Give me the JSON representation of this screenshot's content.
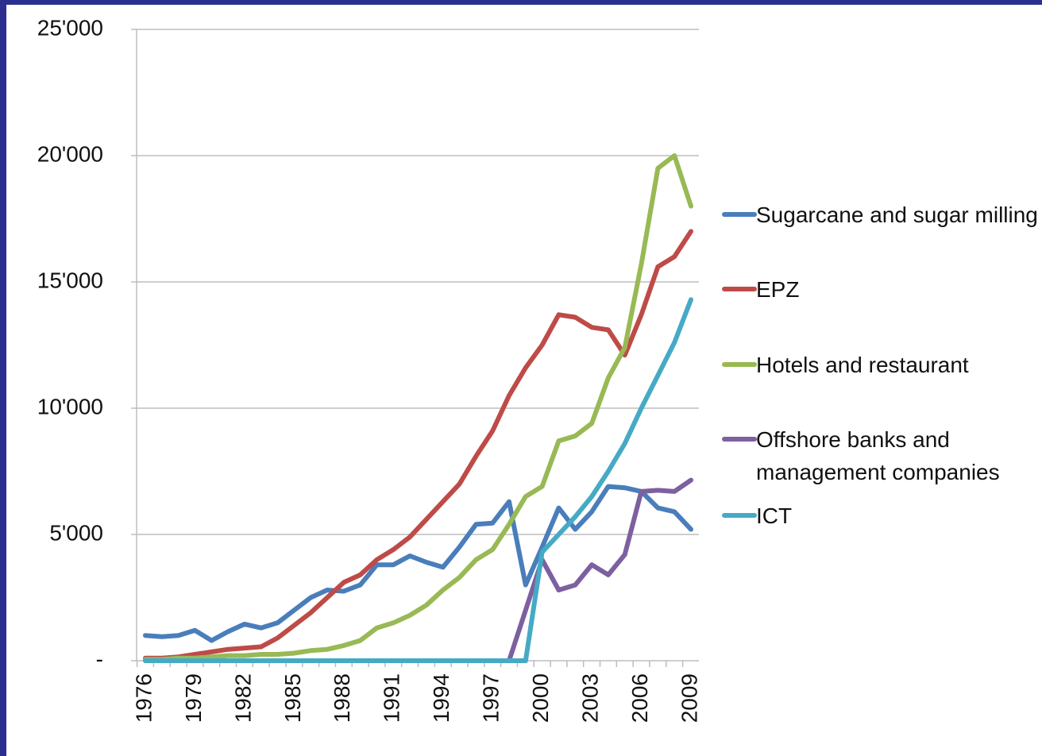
{
  "chart_data": {
    "type": "line",
    "categories": [
      1976,
      null,
      null,
      1979,
      null,
      null,
      1982,
      null,
      null,
      1985,
      null,
      null,
      1988,
      null,
      null,
      1991,
      null,
      null,
      1994,
      null,
      null,
      1997,
      null,
      null,
      2000,
      null,
      null,
      2003,
      null,
      null,
      2006,
      null,
      null,
      2009
    ],
    "series": [
      {
        "name": "Sugarcane and sugar milling",
        "color": "#4a7ebb",
        "values": [
          1000,
          950,
          1000,
          1200,
          800,
          1150,
          1450,
          1300,
          1500,
          2000,
          2500,
          2800,
          2750,
          3000,
          3800,
          3800,
          4150,
          3900,
          3700,
          4500,
          5400,
          5450,
          6300,
          3000,
          4500,
          6050,
          5200,
          5900,
          6900,
          6850,
          6700,
          6050,
          5900,
          5200
        ]
      },
      {
        "name": "EPZ",
        "color": "#be4b48",
        "values": [
          100,
          100,
          150,
          250,
          350,
          450,
          500,
          550,
          900,
          1400,
          1900,
          2500,
          3100,
          3400,
          4000,
          4400,
          4900,
          5600,
          6300,
          7000,
          8100,
          9100,
          10500,
          11600,
          12500,
          13700,
          13600,
          13200,
          13100,
          12100,
          13700,
          15600,
          16000,
          17000
        ]
      },
      {
        "name": "Hotels and restaurant",
        "color": "#98b954",
        "values": [
          50,
          50,
          100,
          100,
          150,
          200,
          200,
          250,
          250,
          300,
          400,
          450,
          600,
          800,
          1300,
          1500,
          1800,
          2200,
          2800,
          3300,
          4000,
          4400,
          5400,
          6500,
          6900,
          8700,
          8900,
          9400,
          11200,
          12400,
          15700,
          19500,
          20000,
          18000
        ]
      },
      {
        "name": "Offshore banks and management companies",
        "color": "#7d60a0",
        "values": [
          0,
          0,
          0,
          0,
          0,
          0,
          0,
          0,
          0,
          0,
          0,
          0,
          0,
          0,
          0,
          0,
          0,
          0,
          0,
          0,
          0,
          0,
          0,
          2000,
          4000,
          2800,
          3000,
          3800,
          3400,
          4200,
          6700,
          6750,
          6700,
          7150
        ]
      },
      {
        "name": "ICT",
        "color": "#46aac5",
        "values": [
          0,
          0,
          0,
          0,
          0,
          0,
          0,
          0,
          0,
          0,
          0,
          0,
          0,
          0,
          0,
          0,
          0,
          0,
          0,
          0,
          0,
          0,
          0,
          0,
          4300,
          5000,
          5700,
          6500,
          7500,
          8600,
          10000,
          11300,
          12600,
          14300
        ]
      }
    ],
    "ylim": [
      0,
      25000
    ],
    "yticks": [
      {
        "value": 0,
        "label": "-"
      },
      {
        "value": 5000,
        "label": "5'000"
      },
      {
        "value": 10000,
        "label": "10'000"
      },
      {
        "value": 15000,
        "label": "15'000"
      },
      {
        "value": 20000,
        "label": "20'000"
      },
      {
        "value": 25000,
        "label": "25'000"
      }
    ],
    "grid": true,
    "legend": "right"
  }
}
